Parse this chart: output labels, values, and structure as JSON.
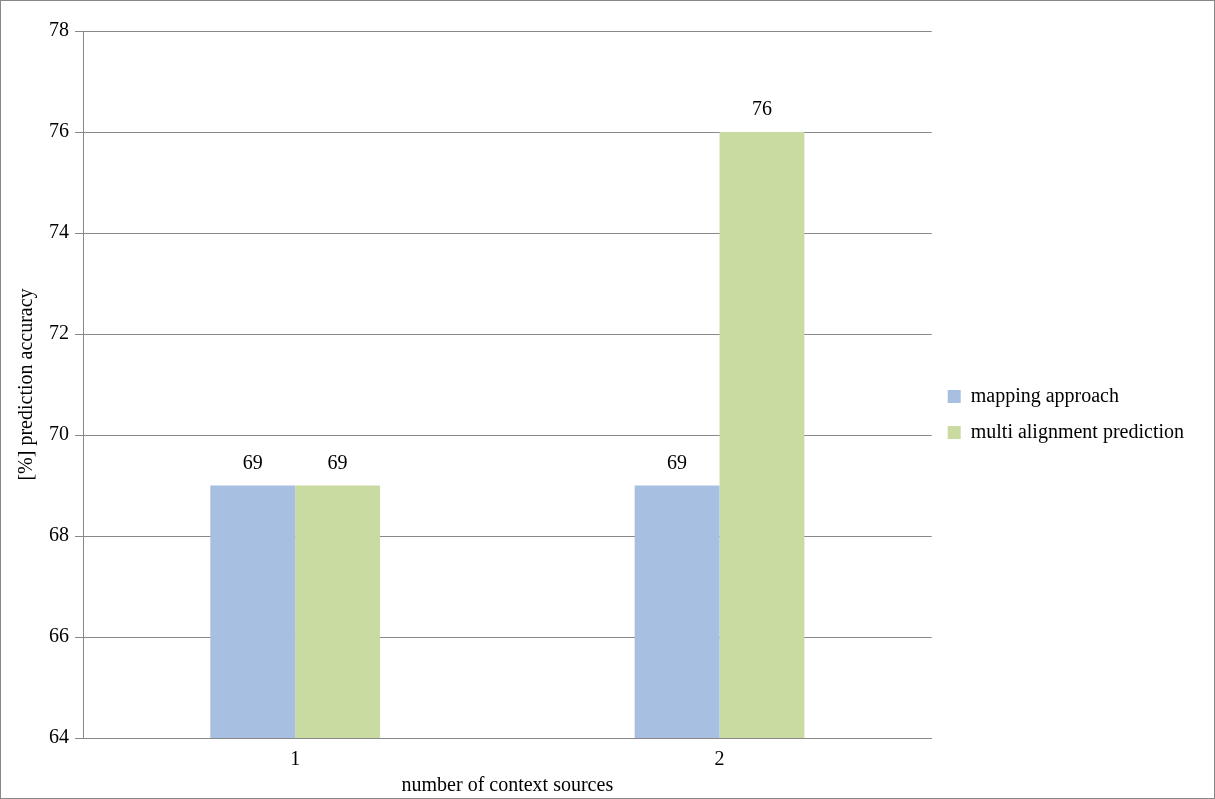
{
  "chart_data": {
    "type": "bar",
    "xlabel": "number of context sources",
    "ylabel": "[%] prediction accuracy",
    "categories": [
      "1",
      "2"
    ],
    "series": [
      {
        "name": "mapping approach",
        "color": "#a7bfe0",
        "values": [
          69,
          69
        ]
      },
      {
        "name": "multi alignment prediction",
        "color": "#c9dba0",
        "values": [
          69,
          76
        ]
      }
    ],
    "ylim": [
      64,
      78
    ],
    "yticks": [
      64,
      66,
      68,
      70,
      72,
      74,
      76,
      78
    ],
    "grid": "y",
    "legend": "right",
    "data_labels": true
  }
}
